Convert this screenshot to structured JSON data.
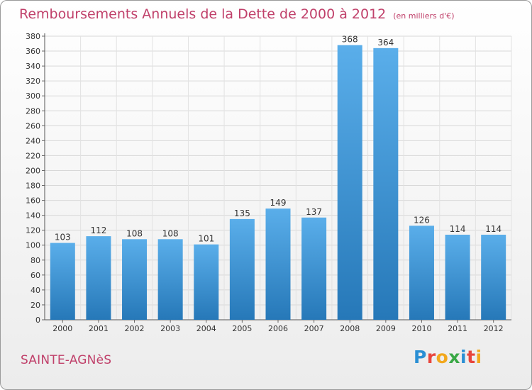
{
  "header": {
    "title": "Remboursements Annuels de la Dette de 2000 à 2012",
    "unit": "(en milliers d'€)"
  },
  "footer": {
    "commune": "SAINTE-AGNèS",
    "logo_letters": [
      "P",
      "r",
      "o",
      "x",
      "i",
      "t",
      "i"
    ],
    "logo_colors": [
      "#2a8fd4",
      "#e8453c",
      "#f2a81d",
      "#39a845",
      "#2a8fd4",
      "#e8453c",
      "#f2a81d"
    ]
  },
  "chart_data": {
    "type": "bar",
    "title": "Remboursements Annuels de la Dette de 2000 à 2012",
    "xlabel": "",
    "ylabel": "",
    "categories": [
      "2000",
      "2001",
      "2002",
      "2003",
      "2004",
      "2005",
      "2006",
      "2007",
      "2008",
      "2009",
      "2010",
      "2011",
      "2012"
    ],
    "values": [
      103,
      112,
      108,
      108,
      101,
      135,
      149,
      137,
      368,
      364,
      126,
      114,
      114
    ],
    "ylim": [
      0,
      380
    ],
    "yticks": [
      0,
      20,
      40,
      60,
      80,
      100,
      120,
      140,
      160,
      180,
      200,
      220,
      240,
      260,
      280,
      300,
      320,
      340,
      360,
      380
    ],
    "grid": true,
    "bar_color_top": "#5aaeea",
    "bar_color_bottom": "#2678b8"
  }
}
